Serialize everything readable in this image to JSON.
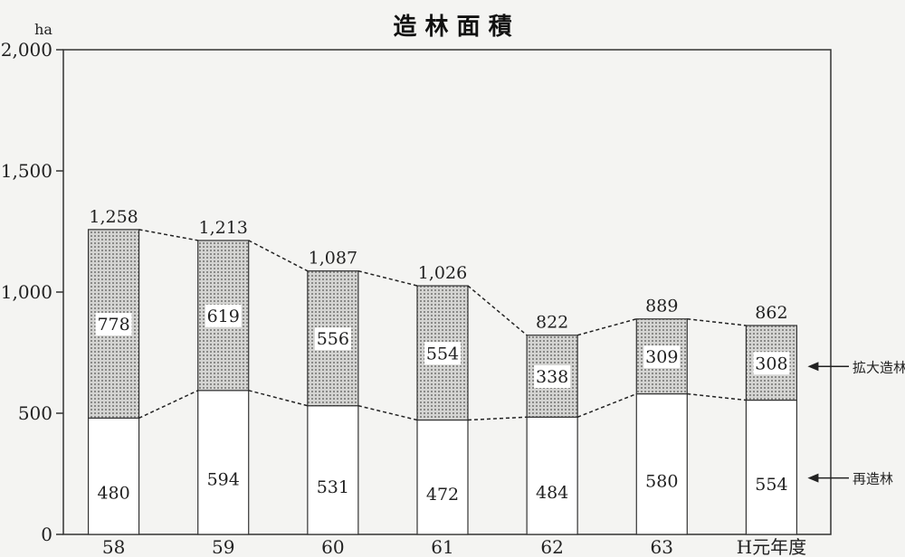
{
  "chart_data": {
    "type": "bar",
    "stacked": true,
    "title": "造 林 面 積",
    "yunit": "ha",
    "ylim": [
      0,
      2000
    ],
    "yticks": [
      0,
      500,
      1000,
      1500,
      2000
    ],
    "ytick_labels": [
      "0",
      "500",
      "1,000",
      "1,500",
      "2,000"
    ],
    "categories": [
      "58",
      "59",
      "60",
      "61",
      "62",
      "63",
      "H元年度"
    ],
    "series": [
      {
        "name": "再造林",
        "values": [
          480,
          594,
          531,
          472,
          484,
          580,
          554
        ],
        "labels": [
          "480",
          "594",
          "531",
          "472",
          "484",
          "580",
          "554"
        ],
        "color": "#ffffff"
      },
      {
        "name": "拡大造林",
        "values": [
          778,
          619,
          556,
          554,
          338,
          309,
          308
        ],
        "labels": [
          "778",
          "619",
          "556",
          "554",
          "338",
          "309",
          "308"
        ],
        "color": "#c8c8c8"
      }
    ],
    "totals": [
      1258,
      1213,
      1087,
      1026,
      822,
      889,
      862
    ],
    "total_labels": [
      "1,258",
      "1,213",
      "1,087",
      "1,026",
      "822",
      "889",
      "862"
    ],
    "grid": false,
    "legend": "right, arrow-annotated"
  }
}
